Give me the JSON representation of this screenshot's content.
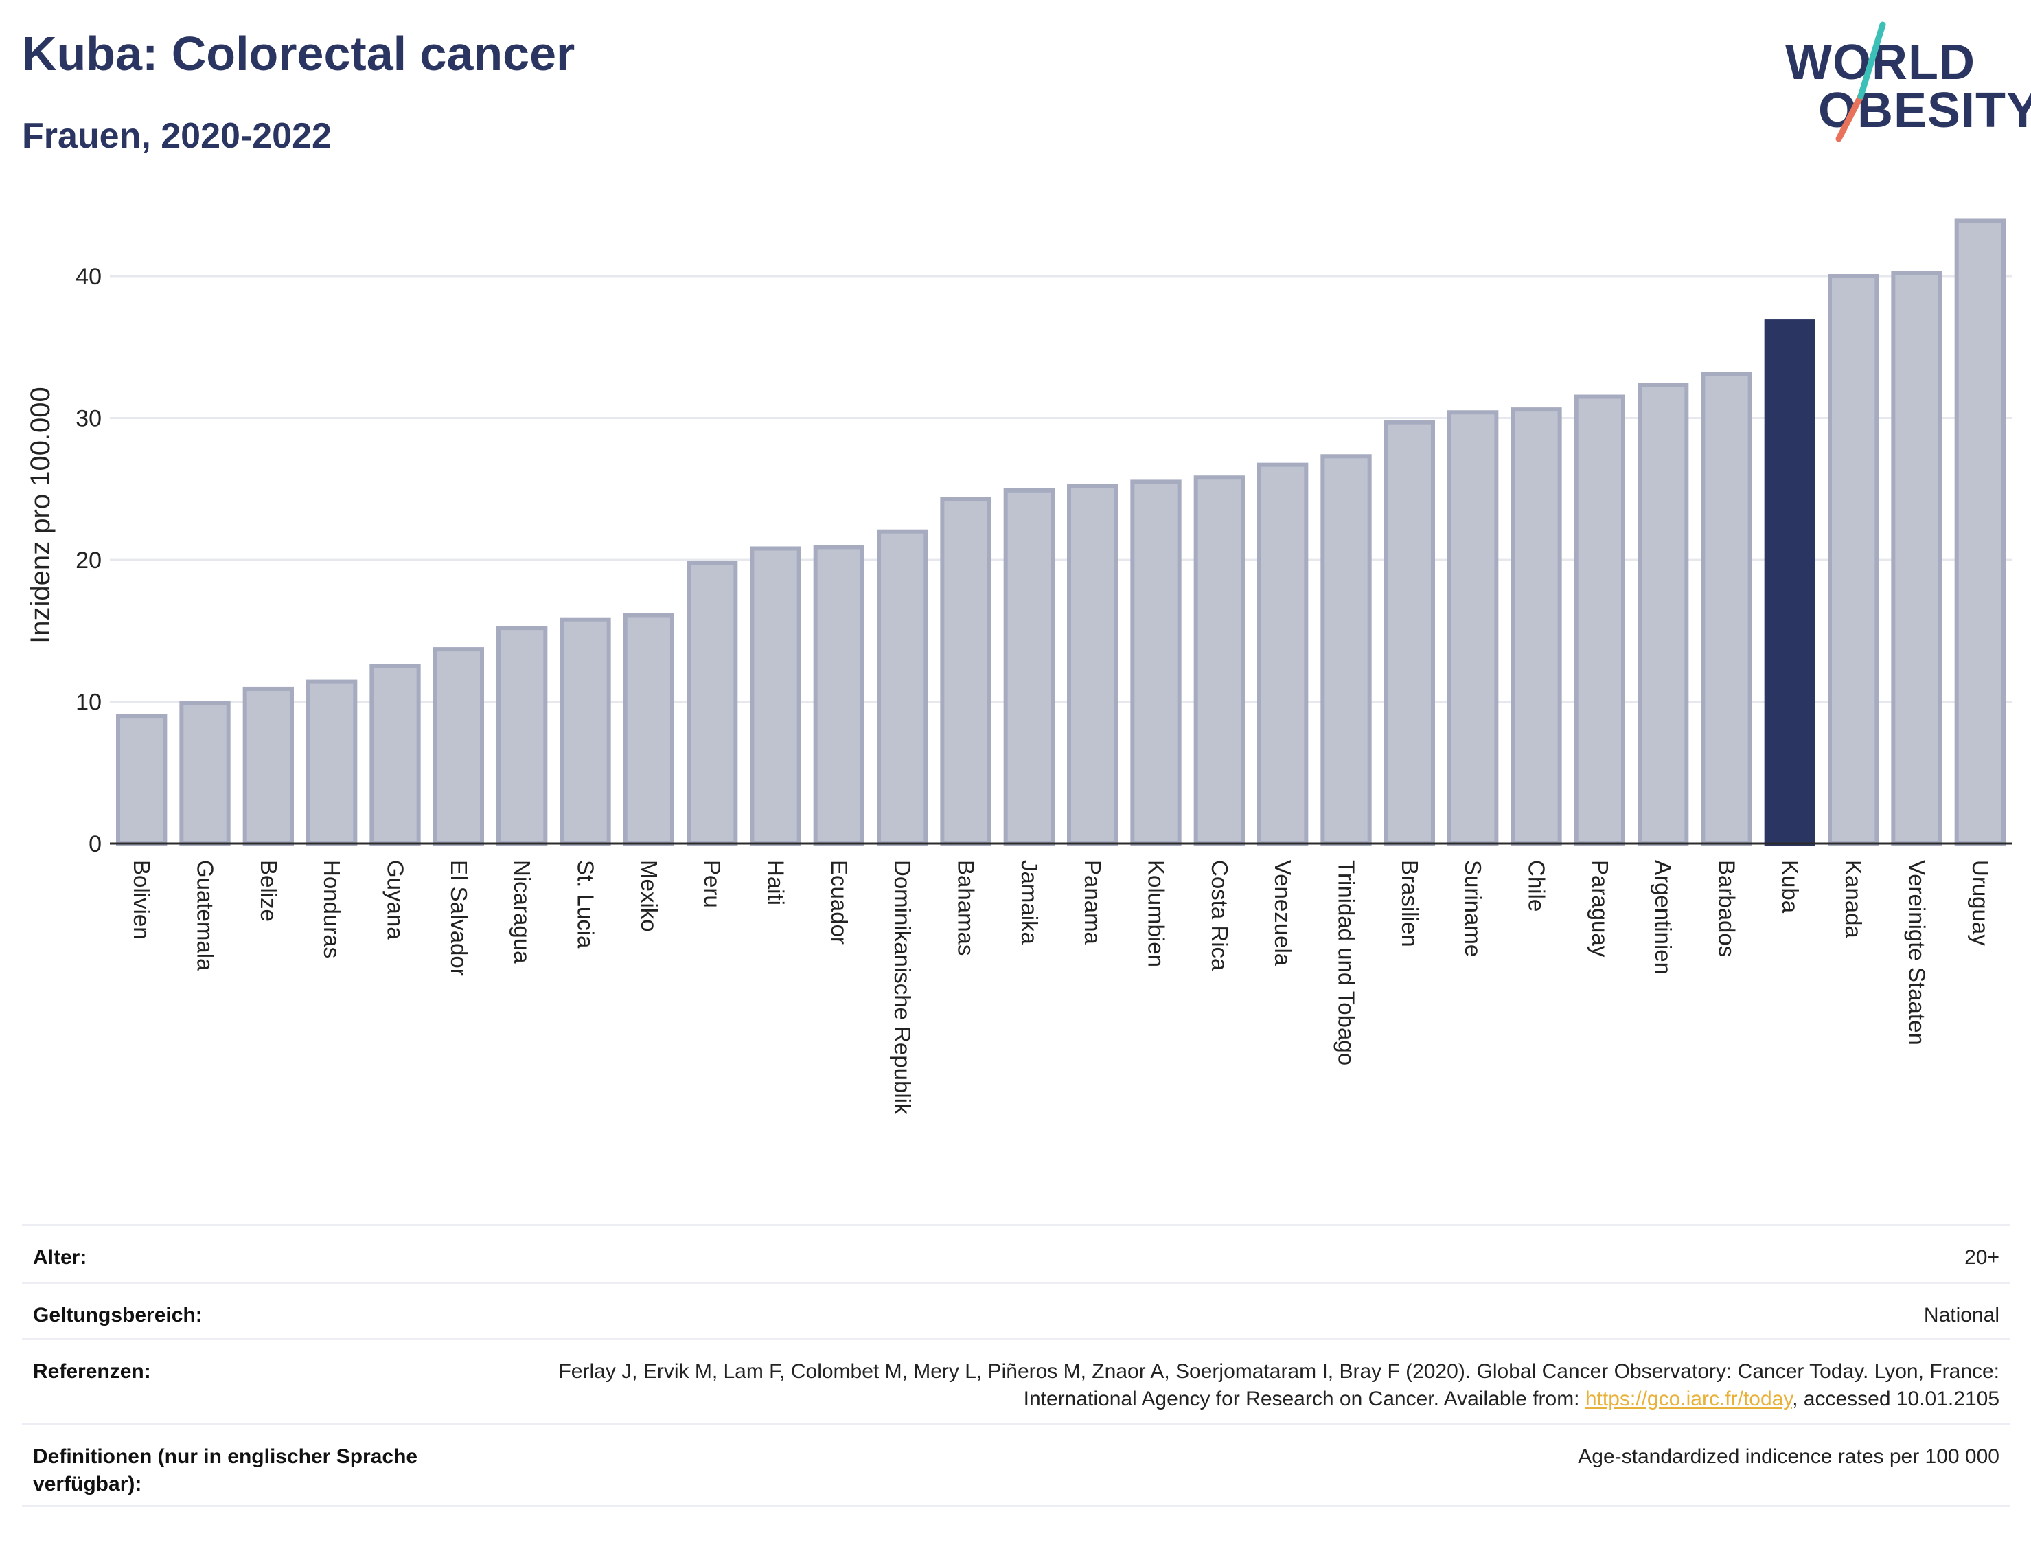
{
  "header": {
    "title": "Kuba: Colorectal cancer",
    "subtitle": "Frauen, 2020-2022"
  },
  "logo": {
    "line1": "WORLD",
    "line2": "OBESITY"
  },
  "colors": {
    "highlight": "#2b3561",
    "bar": "#bfc3d0",
    "bar_border": "#a6abc0",
    "grid": "#e6e8ee",
    "link": "#e8b23a"
  },
  "chart_data": {
    "type": "bar",
    "ylabel": "Inzidenz pro 100.000",
    "xlabel": "",
    "ylim": [
      0,
      44
    ],
    "yticks": [
      0,
      10,
      20,
      30,
      40
    ],
    "grid": true,
    "highlight": "Kuba",
    "categories": [
      "Bolivien",
      "Guatemala",
      "Belize",
      "Honduras",
      "Guyana",
      "El Salvador",
      "Nicaragua",
      "St. Lucia",
      "Mexiko",
      "Peru",
      "Haiti",
      "Ecuador",
      "Dominikanische Republik",
      "Bahamas",
      "Jamaika",
      "Panama",
      "Kolumbien",
      "Costa Rica",
      "Venezuela",
      "Trinidad und Tobago",
      "Brasilien",
      "Suriname",
      "Chile",
      "Paraguay",
      "Argentinien",
      "Barbados",
      "Kuba",
      "Kanada",
      "Vereinigte Staaten",
      "Uruguay"
    ],
    "values": [
      9.0,
      9.9,
      10.9,
      11.4,
      12.5,
      13.7,
      15.2,
      15.8,
      16.1,
      19.8,
      20.8,
      20.9,
      22.0,
      24.3,
      24.9,
      25.2,
      25.5,
      25.8,
      26.7,
      27.3,
      29.7,
      30.4,
      30.6,
      31.5,
      32.3,
      33.1,
      36.8,
      40.0,
      40.2,
      43.9
    ]
  },
  "meta": {
    "age_label": "Alter:",
    "age_value": "20+",
    "scope_label": "Geltungsbereich:",
    "scope_value": "National",
    "ref_label": "Referenzen:",
    "ref_text_1": "Ferlay J, Ervik M, Lam F, Colombet M, Mery L, Piñeros M, Znaor A, Soerjomataram I, Bray F (2020). Global Cancer Observatory: Cancer Today. Lyon, France: International Agency for Research on Cancer. Available from: ",
    "ref_link": "https://gco.iarc.fr/today",
    "ref_text_2": ", accessed 10.01.2105",
    "def_label": "Definitionen (nur in englischer Sprache verfügbar):",
    "def_value": "Age-standardized indicence rates per 100 000"
  }
}
